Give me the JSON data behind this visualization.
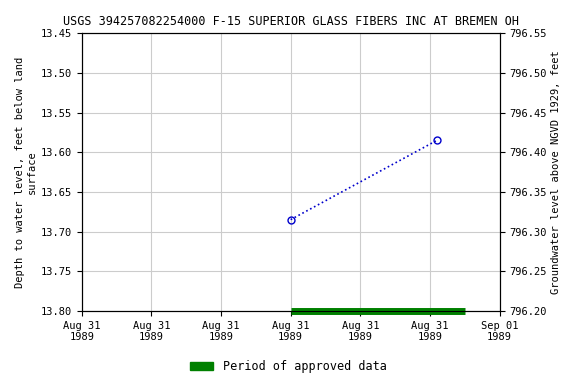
{
  "title": "USGS 394257082254000 F-15 SUPERIOR GLASS FIBERS INC AT BREMEN OH",
  "ylabel_left": "Depth to water level, feet below land\nsurface",
  "ylabel_right": "Groundwater level above NGVD 1929, feet",
  "ylim_left": [
    13.8,
    13.45
  ],
  "ylim_right": [
    796.2,
    796.55
  ],
  "yticks_left": [
    13.45,
    13.5,
    13.55,
    13.6,
    13.65,
    13.7,
    13.75,
    13.8
  ],
  "yticks_right": [
    796.2,
    796.25,
    796.3,
    796.35,
    796.4,
    796.45,
    796.5,
    796.55
  ],
  "xlim": [
    0,
    6
  ],
  "xticks": [
    0,
    1,
    2,
    3,
    4,
    5,
    6
  ],
  "x_tick_labels": [
    "Aug 31\n1989",
    "Aug 31\n1989",
    "Aug 31\n1989",
    "Aug 31\n1989",
    "Aug 31\n1989",
    "Aug 31\n1989",
    "Sep 01\n1989"
  ],
  "data_x": [
    3.0,
    5.1
  ],
  "data_y": [
    13.685,
    13.585
  ],
  "line_color": "#0000CC",
  "marker_color": "#0000CC",
  "green_bar_color": "#008000",
  "green_bar_x_start": 3.0,
  "green_bar_x_end": 5.5,
  "background_color": "#ffffff",
  "grid_color": "#cccccc",
  "title_fontsize": 8.5,
  "axis_label_fontsize": 7.5,
  "tick_fontsize": 7.5,
  "legend_fontsize": 8.5
}
